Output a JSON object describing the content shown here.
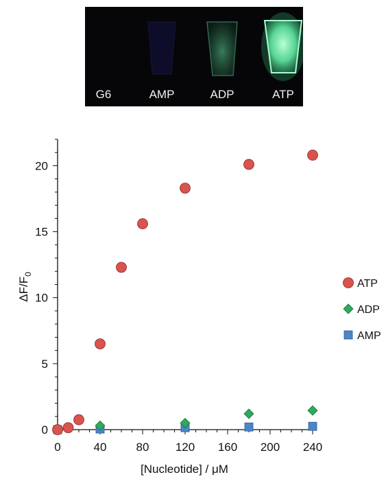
{
  "photo": {
    "vials": [
      {
        "label": "G6",
        "brightness": 0.0
      },
      {
        "label": "AMP",
        "brightness": 0.05
      },
      {
        "label": "ADP",
        "brightness": 0.35
      },
      {
        "label": "ATP",
        "brightness": 1.0
      }
    ],
    "glow_color": "#7dffc0"
  },
  "chart_data": {
    "type": "scatter",
    "xlabel": "[Nucleotide] / μM",
    "ylabel_main": "ΔF/F",
    "ylabel_sub": "0",
    "xlim": [
      0,
      240
    ],
    "ylim": [
      0,
      22
    ],
    "xticks": [
      0,
      40,
      80,
      120,
      160,
      200,
      240
    ],
    "yticks": [
      0,
      5,
      10,
      15,
      20
    ],
    "legend_position": "right",
    "series": [
      {
        "name": "ATP",
        "marker": "circle",
        "color": "#d9534f",
        "x": [
          0,
          10,
          20,
          40,
          60,
          80,
          120,
          180,
          240
        ],
        "y": [
          0.0,
          0.15,
          0.75,
          6.5,
          12.3,
          15.6,
          18.3,
          20.1,
          20.8
        ]
      },
      {
        "name": "ADP",
        "marker": "diamond",
        "color": "#2eaa5c",
        "x": [
          0,
          40,
          120,
          180,
          240
        ],
        "y": [
          0.0,
          0.3,
          0.5,
          1.2,
          1.45
        ]
      },
      {
        "name": "AMP",
        "marker": "square",
        "color": "#4a86c8",
        "x": [
          0,
          40,
          120,
          180,
          240
        ],
        "y": [
          0.0,
          0.05,
          0.15,
          0.2,
          0.25
        ]
      }
    ]
  }
}
